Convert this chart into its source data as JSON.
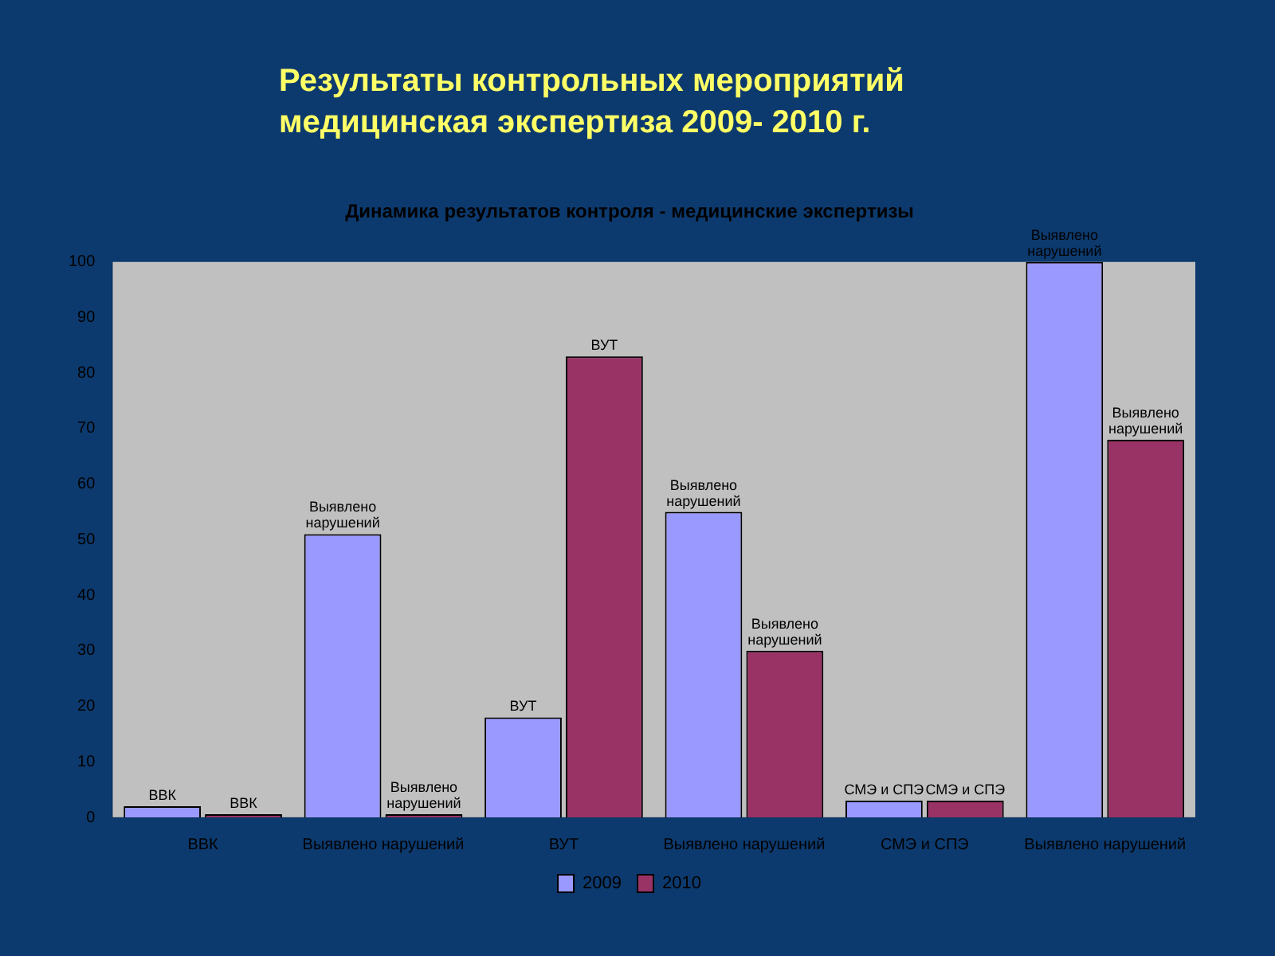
{
  "chart_data": {
    "type": "bar",
    "title": "Результаты контрольных мероприятий\nмедицинская экспертиза 2009- 2010 г.",
    "subtitle": "Динамика результатов контроля - медицинские экспертизы",
    "categories": [
      "ВВК",
      "Выявлено нарушений",
      "ВУТ",
      "Выявлено нарушений",
      "СМЭ и СПЭ",
      "Выявлено нарушений"
    ],
    "series": [
      {
        "name": "2009",
        "color": "#9999ff",
        "values": [
          2,
          51,
          18,
          55,
          3,
          100
        ],
        "value_labels": [
          "ВВК",
          "Выявлено нарушений",
          "ВУТ",
          "Выявлено нарушений",
          "СМЭ и СПЭ",
          "Выявлено нарушений"
        ]
      },
      {
        "name": "2010",
        "color": "#993366",
        "values": [
          0,
          0,
          83,
          30,
          3,
          68
        ],
        "value_labels": [
          "ВВК",
          "Выявлено нарушений",
          "ВУТ",
          "Выявлено нарушений",
          "СМЭ и СПЭ",
          "Выявлено нарушений"
        ]
      }
    ],
    "ylim": [
      0,
      100
    ],
    "yticks": [
      0,
      10,
      20,
      30,
      40,
      50,
      60,
      70,
      80,
      90,
      100
    ],
    "grid": false,
    "legend": "bottom"
  }
}
